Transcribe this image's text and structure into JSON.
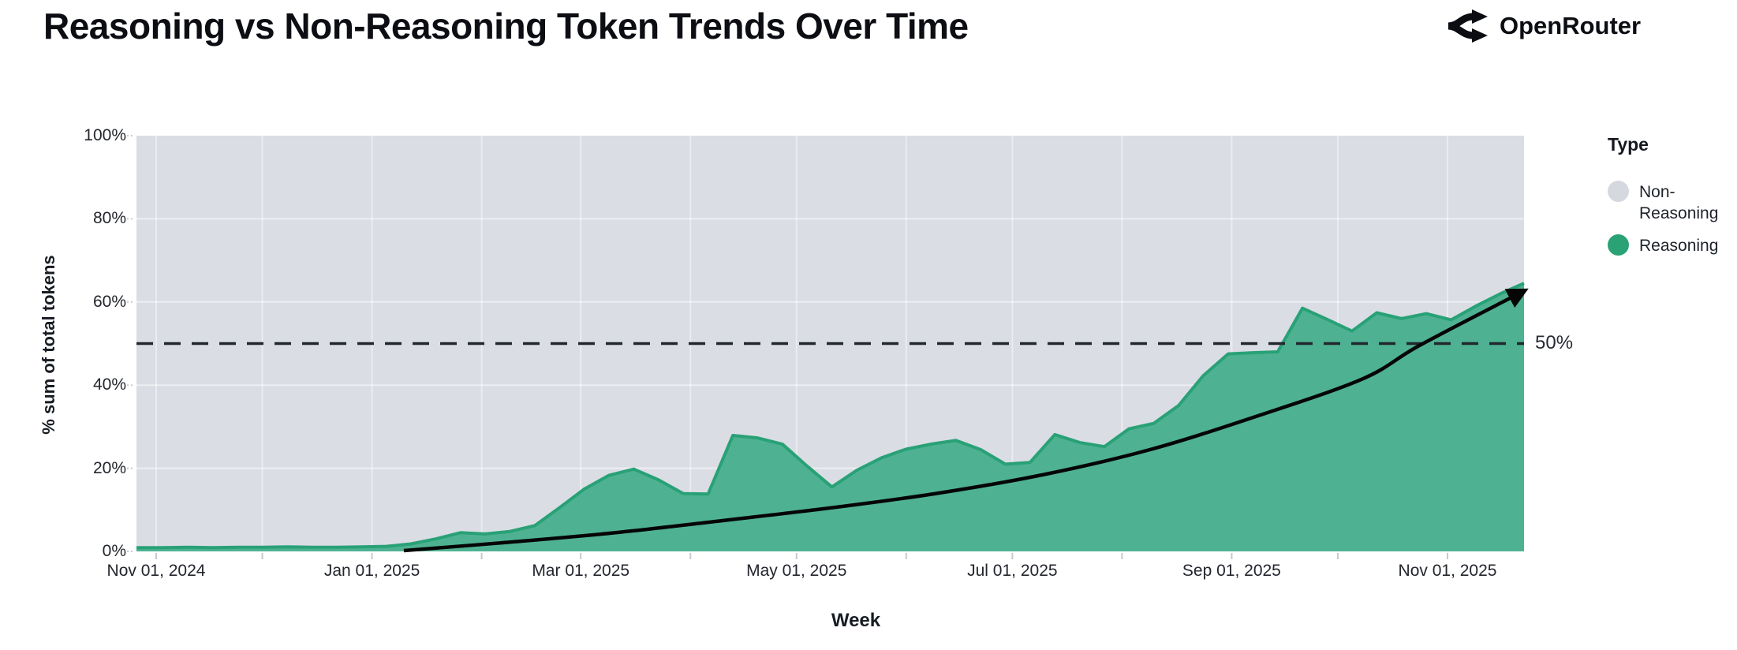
{
  "header": {
    "title": "Reasoning vs Non-Reasoning Token Trends Over Time",
    "brand": "OpenRouter"
  },
  "legend": {
    "title": "Type",
    "items": [
      {
        "label": "Non-Reasoning",
        "color": "#d5d8de"
      },
      {
        "label": "Reasoning",
        "color": "#2aa275"
      }
    ]
  },
  "chart_data": {
    "type": "area",
    "subtype": "100pct-stacked",
    "title": "Reasoning vs Non-Reasoning Token Trends Over Time",
    "xlabel": "Week",
    "ylabel": "% sum of total tokens",
    "ylim": [
      0,
      100
    ],
    "grid": true,
    "legend_position": "right",
    "y_ticks": [
      {
        "value": 0,
        "label": "0%"
      },
      {
        "value": 20,
        "label": "20%"
      },
      {
        "value": 40,
        "label": "40%"
      },
      {
        "value": 60,
        "label": "60%"
      },
      {
        "value": 80,
        "label": "80%"
      },
      {
        "value": 100,
        "label": "100%"
      }
    ],
    "x_ticks": [
      {
        "date": "2024-11-01",
        "label": "Nov 01, 2024"
      },
      {
        "date": "2025-01-01",
        "label": "Jan 01, 2025"
      },
      {
        "date": "2025-03-01",
        "label": "Mar 01, 2025"
      },
      {
        "date": "2025-05-01",
        "label": "May 01, 2025"
      },
      {
        "date": "2025-07-01",
        "label": "Jul 01, 2025"
      },
      {
        "date": "2025-09-01",
        "label": "Sep 01, 2025"
      },
      {
        "date": "2025-11-01",
        "label": "Nov 01, 2025"
      }
    ],
    "month_gridlines": [
      "2024-11-01",
      "2024-12-01",
      "2025-01-01",
      "2025-02-01",
      "2025-03-01",
      "2025-04-01",
      "2025-05-01",
      "2025-06-01",
      "2025-07-01",
      "2025-08-01",
      "2025-09-01",
      "2025-10-01",
      "2025-11-01"
    ],
    "series": [
      {
        "name": "Reasoning",
        "unit": "% of total tokens",
        "points": [
          {
            "date": "2024-10-27",
            "value": 0.9
          },
          {
            "date": "2024-11-03",
            "value": 0.9
          },
          {
            "date": "2024-11-10",
            "value": 1.0
          },
          {
            "date": "2024-11-17",
            "value": 0.9
          },
          {
            "date": "2024-11-24",
            "value": 1.0
          },
          {
            "date": "2024-12-01",
            "value": 1.0
          },
          {
            "date": "2024-12-08",
            "value": 1.1
          },
          {
            "date": "2024-12-15",
            "value": 1.0
          },
          {
            "date": "2024-12-22",
            "value": 1.0
          },
          {
            "date": "2024-12-29",
            "value": 1.1
          },
          {
            "date": "2025-01-05",
            "value": 1.2
          },
          {
            "date": "2025-01-12",
            "value": 1.8
          },
          {
            "date": "2025-01-19",
            "value": 3.0
          },
          {
            "date": "2025-01-26",
            "value": 4.5
          },
          {
            "date": "2025-02-02",
            "value": 4.2
          },
          {
            "date": "2025-02-09",
            "value": 4.8
          },
          {
            "date": "2025-02-16",
            "value": 6.2
          },
          {
            "date": "2025-02-23",
            "value": 10.5
          },
          {
            "date": "2025-03-02",
            "value": 15.0
          },
          {
            "date": "2025-03-09",
            "value": 18.3
          },
          {
            "date": "2025-03-16",
            "value": 19.8
          },
          {
            "date": "2025-03-23",
            "value": 17.2
          },
          {
            "date": "2025-03-30",
            "value": 13.9
          },
          {
            "date": "2025-04-06",
            "value": 13.8
          },
          {
            "date": "2025-04-13",
            "value": 27.9
          },
          {
            "date": "2025-04-20",
            "value": 27.3
          },
          {
            "date": "2025-04-27",
            "value": 25.8
          },
          {
            "date": "2025-05-04",
            "value": 20.5
          },
          {
            "date": "2025-05-11",
            "value": 15.5
          },
          {
            "date": "2025-05-18",
            "value": 19.5
          },
          {
            "date": "2025-05-25",
            "value": 22.5
          },
          {
            "date": "2025-06-01",
            "value": 24.6
          },
          {
            "date": "2025-06-08",
            "value": 25.8
          },
          {
            "date": "2025-06-15",
            "value": 26.7
          },
          {
            "date": "2025-06-22",
            "value": 24.5
          },
          {
            "date": "2025-06-29",
            "value": 21.0
          },
          {
            "date": "2025-07-06",
            "value": 21.4
          },
          {
            "date": "2025-07-13",
            "value": 28.1
          },
          {
            "date": "2025-07-20",
            "value": 26.2
          },
          {
            "date": "2025-07-27",
            "value": 25.2
          },
          {
            "date": "2025-08-03",
            "value": 29.5
          },
          {
            "date": "2025-08-10",
            "value": 30.8
          },
          {
            "date": "2025-08-17",
            "value": 35.1
          },
          {
            "date": "2025-08-24",
            "value": 42.3
          },
          {
            "date": "2025-08-31",
            "value": 47.5
          },
          {
            "date": "2025-09-07",
            "value": 47.8
          },
          {
            "date": "2025-09-14",
            "value": 48.0
          },
          {
            "date": "2025-09-21",
            "value": 58.5
          },
          {
            "date": "2025-09-28",
            "value": 55.8
          },
          {
            "date": "2025-10-05",
            "value": 53.0
          },
          {
            "date": "2025-10-12",
            "value": 57.4
          },
          {
            "date": "2025-10-19",
            "value": 56.0
          },
          {
            "date": "2025-10-26",
            "value": 57.2
          },
          {
            "date": "2025-11-02",
            "value": 55.7
          },
          {
            "date": "2025-11-09",
            "value": 59.0
          },
          {
            "date": "2025-11-16",
            "value": 62.0
          },
          {
            "date": "2025-11-22",
            "value": 64.5
          }
        ]
      },
      {
        "name": "Non-Reasoning",
        "note": "remainder to 100% (stacked complement of Reasoning)"
      }
    ],
    "reference_line": {
      "value": 50,
      "label": "50%",
      "style": "dashed"
    },
    "trend_arrow": {
      "style": "solid-black-arrow",
      "points": [
        {
          "date": "2025-01-10",
          "value": 0.2
        },
        {
          "date": "2025-02-10",
          "value": 2.3
        },
        {
          "date": "2025-03-12",
          "value": 4.6
        },
        {
          "date": "2025-04-11",
          "value": 7.5
        },
        {
          "date": "2025-05-11",
          "value": 10.5
        },
        {
          "date": "2025-06-10",
          "value": 14.0
        },
        {
          "date": "2025-07-10",
          "value": 18.5
        },
        {
          "date": "2025-08-09",
          "value": 24.5
        },
        {
          "date": "2025-09-08",
          "value": 32.5
        },
        {
          "date": "2025-10-08",
          "value": 41.5
        },
        {
          "date": "2025-10-24",
          "value": 49.5
        },
        {
          "date": "2025-11-20",
          "value": 61.5
        }
      ]
    },
    "colors": {
      "reasoning_fill": "#4eb292",
      "reasoning_stroke": "#29a176",
      "non_reasoning_bg": "#dadde4",
      "grid": "#ffffff",
      "axis_tick": "#c6cad1",
      "reference": "#22262e",
      "trend": "#050505"
    }
  }
}
